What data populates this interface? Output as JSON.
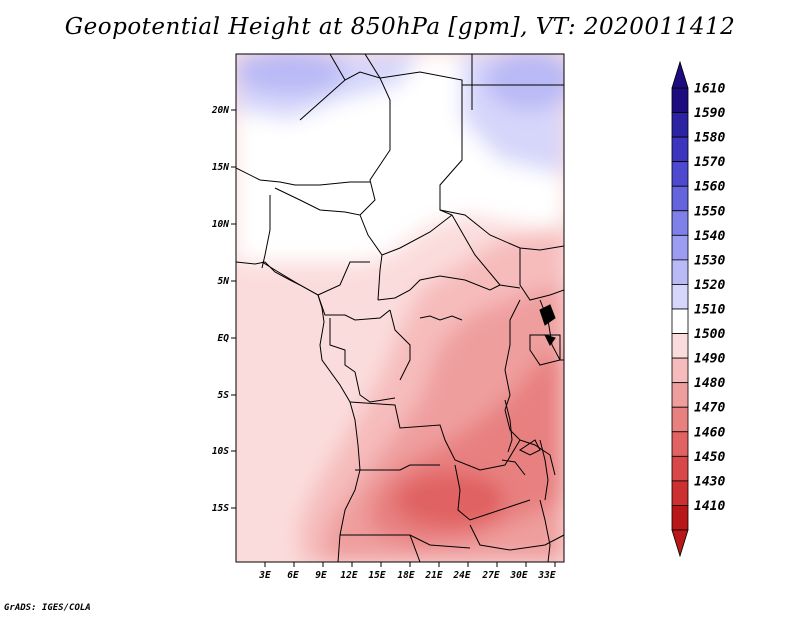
{
  "title": "Geopotential Height at 850hPa [gpm], VT: 2020011412",
  "footer": "GrADS: IGES/COLA",
  "map": {
    "lat_labels": [
      "20N",
      "15N",
      "10N",
      "5N",
      "EQ",
      "5S",
      "10S",
      "15S"
    ],
    "lon_labels": [
      "3E",
      "6E",
      "9E",
      "12E",
      "15E",
      "18E",
      "21E",
      "24E",
      "27E",
      "30E",
      "33E"
    ],
    "lat_range": [
      -20.5,
      24.5
    ],
    "lon_range": [
      0.5,
      34.5
    ]
  },
  "colorbar": {
    "labels": [
      "1610",
      "1590",
      "1580",
      "1570",
      "1560",
      "1550",
      "1540",
      "1530",
      "1520",
      "1510",
      "1500",
      "1490",
      "1480",
      "1470",
      "1460",
      "1450",
      "1430",
      "1410"
    ],
    "colors": [
      "#1c0c7e",
      "#2c22a4",
      "#3d35bd",
      "#4e4ad0",
      "#6564dd",
      "#7f80e8",
      "#9c9cf0",
      "#b9b9f6",
      "#d6d6fb",
      "#ffffff",
      "#fbdcdc",
      "#f6bcbc",
      "#ef9e9e",
      "#e88080",
      "#e06262",
      "#d84848",
      "#cc3030",
      "#b81818"
    ]
  }
}
